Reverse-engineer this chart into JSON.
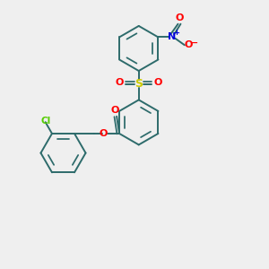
{
  "bg_color": "#efefef",
  "bond_color": "#2d6b6b",
  "cl_color": "#55cc00",
  "o_color": "#ff0000",
  "n_color": "#0000dd",
  "s_color": "#cccc00",
  "lw": 1.4,
  "r": 0.85,
  "figsize": [
    3.0,
    3.0
  ],
  "dpi": 100,
  "xlim": [
    0,
    10
  ],
  "ylim": [
    0,
    10
  ]
}
